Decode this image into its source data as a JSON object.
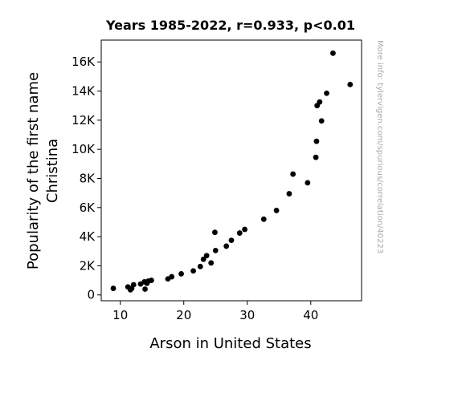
{
  "chart_data": {
    "type": "scatter",
    "title": "Years 1985-2022, r=0.933, p<0.01",
    "xlabel": "Arson in United States",
    "ylabel_lines": [
      "Popularity of the first name",
      "Christina"
    ],
    "watermark": "More info: tylervigen.com/spurious/correlation/40223",
    "xlim": [
      7,
      48
    ],
    "ylim": [
      -400,
      17500
    ],
    "x_ticks": [
      10,
      20,
      30,
      40
    ],
    "x_tick_labels": [
      "10",
      "20",
      "30",
      "40"
    ],
    "y_ticks": [
      0,
      2000,
      4000,
      6000,
      8000,
      10000,
      12000,
      14000,
      16000
    ],
    "y_tick_labels": [
      "0",
      "2K",
      "4K",
      "6K",
      "8K",
      "10K",
      "12K",
      "14K",
      "16K"
    ],
    "grid": false,
    "marker_color": "#000000",
    "points": [
      {
        "x": 43.5,
        "y": 16600
      },
      {
        "x": 46.2,
        "y": 14450
      },
      {
        "x": 42.5,
        "y": 13850
      },
      {
        "x": 41.4,
        "y": 13250
      },
      {
        "x": 41.0,
        "y": 13000
      },
      {
        "x": 41.7,
        "y": 11950
      },
      {
        "x": 40.9,
        "y": 10550
      },
      {
        "x": 40.8,
        "y": 9450
      },
      {
        "x": 37.2,
        "y": 8300
      },
      {
        "x": 39.5,
        "y": 7700
      },
      {
        "x": 36.6,
        "y": 6950
      },
      {
        "x": 34.6,
        "y": 5800
      },
      {
        "x": 32.6,
        "y": 5200
      },
      {
        "x": 29.6,
        "y": 4500
      },
      {
        "x": 24.9,
        "y": 4300
      },
      {
        "x": 28.8,
        "y": 4250
      },
      {
        "x": 27.5,
        "y": 3750
      },
      {
        "x": 26.7,
        "y": 3350
      },
      {
        "x": 25.0,
        "y": 3050
      },
      {
        "x": 23.6,
        "y": 2700
      },
      {
        "x": 23.1,
        "y": 2450
      },
      {
        "x": 24.3,
        "y": 2200
      },
      {
        "x": 22.6,
        "y": 1950
      },
      {
        "x": 21.5,
        "y": 1650
      },
      {
        "x": 19.6,
        "y": 1450
      },
      {
        "x": 18.1,
        "y": 1250
      },
      {
        "x": 17.5,
        "y": 1100
      },
      {
        "x": 14.9,
        "y": 1000
      },
      {
        "x": 14.4,
        "y": 950
      },
      {
        "x": 13.8,
        "y": 900
      },
      {
        "x": 14.2,
        "y": 800
      },
      {
        "x": 13.2,
        "y": 750
      },
      {
        "x": 12.1,
        "y": 700
      },
      {
        "x": 11.2,
        "y": 550
      },
      {
        "x": 11.8,
        "y": 450
      },
      {
        "x": 8.9,
        "y": 450
      },
      {
        "x": 13.9,
        "y": 400
      },
      {
        "x": 11.6,
        "y": 350
      }
    ]
  }
}
